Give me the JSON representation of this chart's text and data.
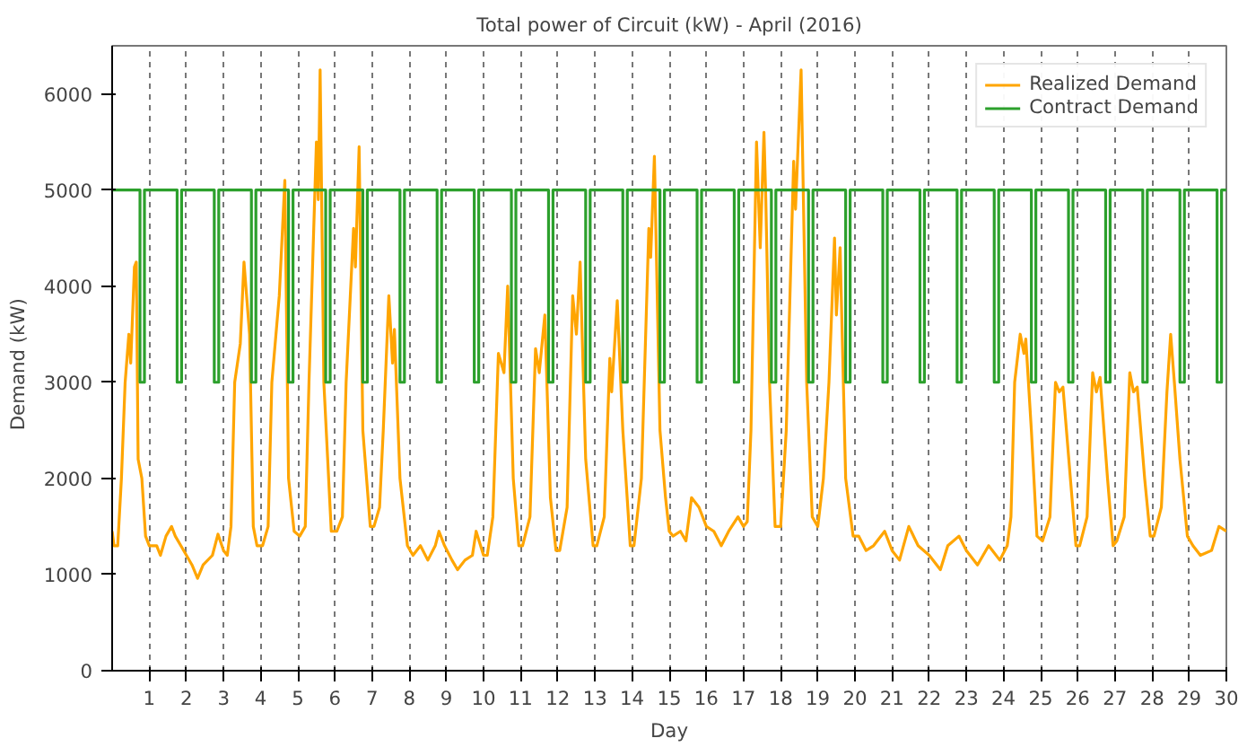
{
  "chart_data": {
    "type": "line",
    "title": "Total power of Circuit (kW) - April (2016)",
    "xlabel": "Day",
    "ylabel": "Demand   (kW)",
    "xlim": [
      0,
      30
    ],
    "xticks": [
      1,
      2,
      3,
      4,
      5,
      6,
      7,
      8,
      9,
      10,
      11,
      12,
      13,
      14,
      15,
      16,
      17,
      18,
      19,
      20,
      21,
      22,
      23,
      24,
      25,
      26,
      27,
      28,
      29,
      30
    ],
    "ylim": [
      0,
      6500
    ],
    "yticks": [
      0,
      1000,
      2000,
      3000,
      4000,
      5000,
      6000
    ],
    "grid": "x",
    "legend": "top right",
    "line_style": "solid",
    "series": [
      {
        "name": "Realized Demand",
        "color": "#ffa500",
        "x": [
          0,
          0.05,
          0.15,
          0.25,
          0.35,
          0.45,
          0.5,
          0.6,
          0.65,
          0.7,
          0.8,
          0.9,
          1.0,
          1.2,
          1.3,
          1.45,
          1.6,
          1.7,
          1.85,
          2.0,
          2.15,
          2.3,
          2.45,
          2.7,
          2.85,
          3.0,
          3.1,
          3.2,
          3.3,
          3.45,
          3.55,
          3.7,
          3.8,
          3.9,
          4.05,
          4.2,
          4.3,
          4.5,
          4.65,
          4.75,
          4.9,
          5.05,
          5.2,
          5.3,
          5.5,
          5.55,
          5.6,
          5.7,
          5.9,
          6.05,
          6.2,
          6.3,
          6.5,
          6.55,
          6.65,
          6.75,
          6.95,
          7.05,
          7.2,
          7.3,
          7.45,
          7.55,
          7.6,
          7.75,
          7.95,
          8.1,
          8.3,
          8.5,
          8.7,
          8.8,
          8.95,
          9.15,
          9.3,
          9.5,
          9.7,
          9.8,
          10.0,
          10.1,
          10.25,
          10.4,
          10.55,
          10.65,
          10.8,
          10.95,
          11.05,
          11.25,
          11.4,
          11.5,
          11.65,
          11.8,
          11.95,
          12.05,
          12.25,
          12.4,
          12.5,
          12.6,
          12.75,
          12.95,
          13.05,
          13.25,
          13.4,
          13.45,
          13.6,
          13.75,
          13.95,
          14.05,
          14.25,
          14.45,
          14.5,
          14.6,
          14.75,
          14.9,
          15.0,
          15.1,
          15.3,
          15.45,
          15.6,
          15.8,
          16.0,
          16.2,
          16.4,
          16.6,
          16.85,
          17.0,
          17.1,
          17.2,
          17.35,
          17.45,
          17.55,
          17.6,
          17.7,
          17.85,
          18.0,
          18.15,
          18.35,
          18.4,
          18.55,
          18.7,
          18.85,
          19.0,
          19.15,
          19.3,
          19.45,
          19.5,
          19.6,
          19.75,
          19.95,
          20.1,
          20.3,
          20.5,
          20.8,
          21.0,
          21.2,
          21.45,
          21.7,
          22.0,
          22.3,
          22.5,
          22.8,
          23.0,
          23.3,
          23.6,
          23.9,
          24.1,
          24.2,
          24.3,
          24.45,
          24.55,
          24.6,
          24.75,
          24.9,
          25.05,
          25.25,
          25.4,
          25.5,
          25.6,
          25.8,
          25.95,
          26.05,
          26.25,
          26.4,
          26.5,
          26.6,
          26.8,
          26.95,
          27.05,
          27.25,
          27.4,
          27.5,
          27.6,
          27.8,
          27.95,
          28.05,
          28.25,
          28.4,
          28.5,
          28.6,
          28.75,
          28.95,
          29.1,
          29.3,
          29.6,
          29.8,
          30.0
        ],
        "values": [
          1450,
          1300,
          1300,
          2000,
          3000,
          3500,
          3200,
          4200,
          4250,
          2200,
          2000,
          1400,
          1300,
          1300,
          1200,
          1400,
          1500,
          1400,
          1300,
          1200,
          1100,
          960,
          1100,
          1200,
          1420,
          1250,
          1200,
          1500,
          3000,
          3400,
          4250,
          3500,
          1500,
          1300,
          1300,
          1500,
          3000,
          3900,
          5100,
          2000,
          1450,
          1400,
          1500,
          3000,
          5500,
          4900,
          6250,
          3000,
          1450,
          1450,
          1600,
          3000,
          4600,
          4200,
          5450,
          2500,
          1500,
          1500,
          1700,
          2500,
          3900,
          3200,
          3550,
          2000,
          1300,
          1200,
          1300,
          1150,
          1300,
          1450,
          1300,
          1150,
          1050,
          1150,
          1200,
          1450,
          1200,
          1200,
          1600,
          3300,
          3100,
          4000,
          2000,
          1300,
          1300,
          1600,
          3350,
          3100,
          3700,
          1800,
          1250,
          1250,
          1700,
          3900,
          3500,
          4250,
          2200,
          1300,
          1300,
          1600,
          3250,
          2900,
          3850,
          2500,
          1300,
          1300,
          2000,
          4600,
          4300,
          5350,
          2500,
          1800,
          1450,
          1400,
          1450,
          1350,
          1800,
          1700,
          1500,
          1450,
          1300,
          1450,
          1600,
          1500,
          1550,
          2500,
          5500,
          4400,
          5600,
          4900,
          3000,
          1500,
          1500,
          2500,
          5300,
          4800,
          6250,
          3000,
          1600,
          1500,
          2000,
          3000,
          4500,
          3700,
          4400,
          2000,
          1400,
          1400,
          1250,
          1300,
          1450,
          1250,
          1150,
          1500,
          1300,
          1200,
          1050,
          1300,
          1400,
          1250,
          1100,
          1300,
          1150,
          1300,
          1600,
          3000,
          3500,
          3300,
          3450,
          2500,
          1400,
          1350,
          1600,
          3000,
          2900,
          2950,
          2000,
          1300,
          1300,
          1600,
          3100,
          2900,
          3050,
          2000,
          1300,
          1350,
          1600,
          3100,
          2900,
          2950,
          2000,
          1400,
          1400,
          1700,
          2900,
          3500,
          3000,
          2200,
          1400,
          1300,
          1200,
          1250,
          1500,
          1450
        ]
      },
      {
        "name": "Contract Demand",
        "color": "#2ca02c",
        "x": [
          0,
          0.75,
          0.75,
          0.87,
          0.87,
          1.75,
          1.75,
          1.87,
          1.87,
          2.75,
          2.75,
          2.87,
          2.87,
          3.75,
          3.75,
          3.87,
          3.87,
          4.75,
          4.75,
          4.87,
          4.87,
          5.75,
          5.75,
          5.87,
          5.87,
          6.75,
          6.75,
          6.87,
          6.87,
          7.75,
          7.75,
          7.87,
          7.87,
          8.75,
          8.75,
          8.87,
          8.87,
          9.75,
          9.75,
          9.87,
          9.87,
          10.75,
          10.75,
          10.87,
          10.87,
          11.75,
          11.75,
          11.87,
          11.87,
          12.75,
          12.75,
          12.87,
          12.87,
          13.75,
          13.75,
          13.87,
          13.87,
          14.75,
          14.75,
          14.87,
          14.87,
          15.75,
          15.75,
          15.87,
          15.87,
          16.75,
          16.75,
          16.87,
          16.87,
          17.75,
          17.75,
          17.87,
          17.87,
          18.75,
          18.75,
          18.87,
          18.87,
          19.75,
          19.75,
          19.87,
          19.87,
          20.75,
          20.75,
          20.87,
          20.87,
          21.75,
          21.75,
          21.87,
          21.87,
          22.75,
          22.75,
          22.87,
          22.87,
          23.75,
          23.75,
          23.87,
          23.87,
          24.75,
          24.75,
          24.87,
          24.87,
          25.75,
          25.75,
          25.87,
          25.87,
          26.75,
          26.75,
          26.87,
          26.87,
          27.75,
          27.75,
          27.87,
          27.87,
          28.75,
          28.75,
          28.87,
          28.87,
          29.75,
          29.75,
          29.87,
          29.87,
          30
        ],
        "values": [
          5000,
          5000,
          3000,
          3000,
          5000,
          5000,
          3000,
          3000,
          5000,
          5000,
          3000,
          3000,
          5000,
          5000,
          3000,
          3000,
          5000,
          5000,
          3000,
          3000,
          5000,
          5000,
          3000,
          3000,
          5000,
          5000,
          3000,
          3000,
          5000,
          5000,
          3000,
          3000,
          5000,
          5000,
          3000,
          3000,
          5000,
          5000,
          3000,
          3000,
          5000,
          5000,
          3000,
          3000,
          5000,
          5000,
          3000,
          3000,
          5000,
          5000,
          3000,
          3000,
          5000,
          5000,
          3000,
          3000,
          5000,
          5000,
          3000,
          3000,
          5000,
          5000,
          3000,
          3000,
          5000,
          5000,
          3000,
          3000,
          5000,
          5000,
          3000,
          3000,
          5000,
          5000,
          3000,
          3000,
          5000,
          5000,
          3000,
          3000,
          5000,
          5000,
          3000,
          3000,
          5000,
          5000,
          3000,
          3000,
          5000,
          5000,
          3000,
          3000,
          5000,
          5000,
          3000,
          3000,
          5000,
          5000,
          3000,
          3000,
          5000,
          5000,
          3000,
          3000,
          5000,
          5000,
          3000,
          3000,
          5000,
          5000,
          3000,
          3000,
          5000,
          5000,
          3000,
          3000,
          5000,
          5000,
          3000,
          3000,
          5000,
          5000
        ]
      }
    ]
  }
}
